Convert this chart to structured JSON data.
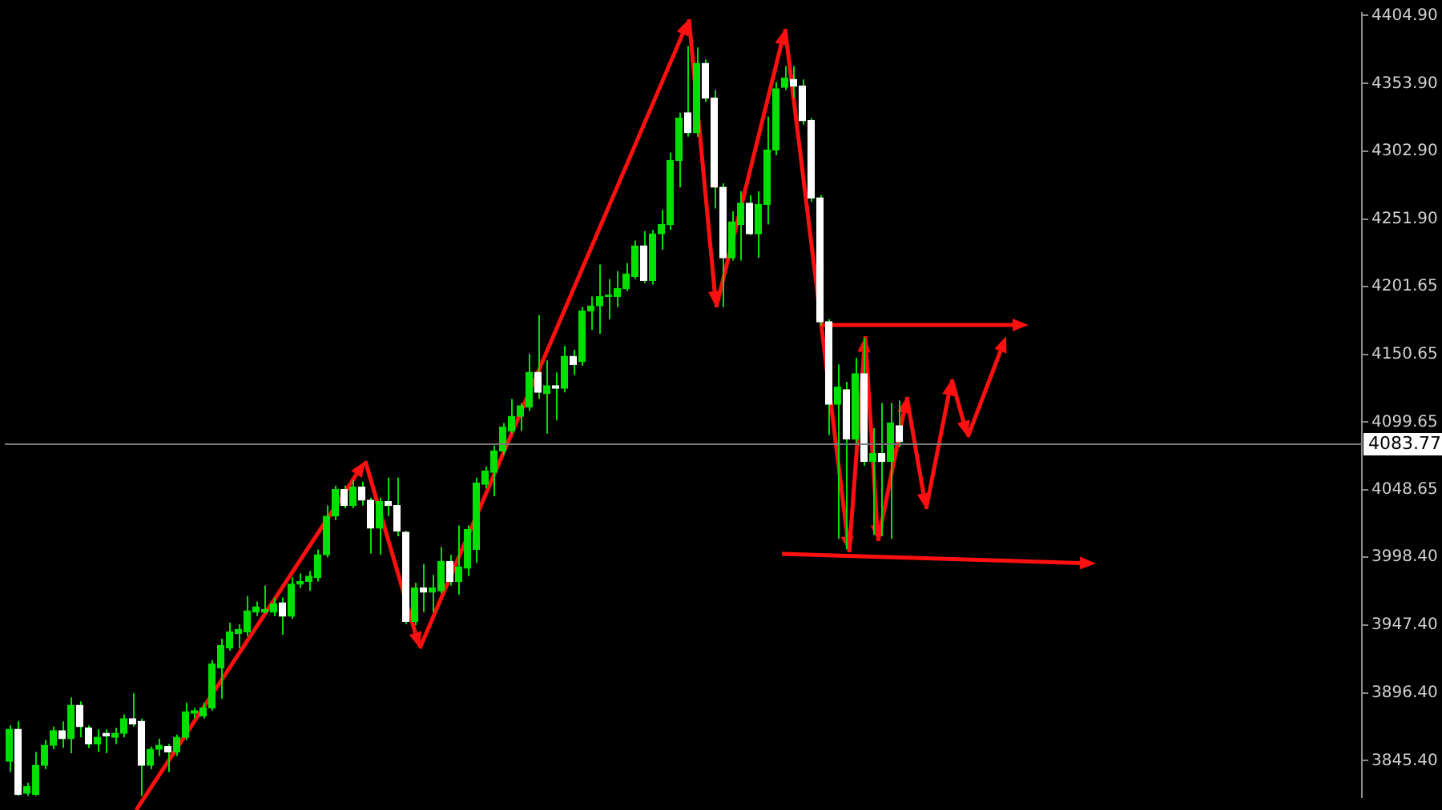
{
  "chart_data": {
    "type": "candlestick",
    "color": "#00e000",
    "categories": [
      null,
      null,
      null,
      null,
      null,
      null,
      null,
      null,
      null,
      null,
      null,
      null,
      null,
      null,
      null,
      null,
      null,
      null,
      null,
      null,
      null,
      null,
      null,
      null,
      null,
      null,
      null,
      null,
      null,
      null,
      null,
      null,
      null,
      null,
      null,
      null,
      null,
      null,
      null,
      null,
      null,
      null,
      null,
      null,
      null,
      null,
      null,
      null,
      null,
      null,
      null,
      null,
      null,
      null,
      null,
      null,
      null,
      null,
      null,
      null,
      null,
      null,
      null,
      null,
      null,
      null,
      null,
      null,
      null,
      null,
      null,
      null,
      null,
      null,
      null,
      null,
      null,
      null,
      null,
      null,
      null,
      null,
      null,
      null,
      null,
      null,
      null,
      null,
      null,
      null,
      null,
      null,
      null,
      null,
      null,
      null,
      null,
      null,
      null,
      null,
      null,
      null,
      null,
      null,
      null,
      null,
      null,
      null,
      null,
      null,
      null,
      null,
      null,
      null,
      null,
      null,
      null,
      null,
      null,
      null,
      null,
      null,
      null,
      null,
      null,
      null,
      null,
      null,
      null,
      null,
      null,
      null,
      null,
      null,
      null,
      null,
      null,
      null,
      null,
      null,
      null,
      null,
      null,
      null,
      null,
      null,
      null,
      null,
      null,
      null,
      null,
      null,
      null,
      null
    ],
    "ohlc": [
      [
        3845,
        3872,
        3837,
        3869
      ],
      [
        3869,
        3875,
        3819,
        3820
      ],
      [
        3821,
        3829,
        3819,
        3826
      ],
      [
        3820,
        3852,
        3819,
        3842
      ],
      [
        3842,
        3861,
        3839,
        3857
      ],
      [
        3857,
        3871,
        3854,
        3868
      ],
      [
        3868,
        3875,
        3855,
        3862
      ],
      [
        3862,
        3893,
        3851,
        3887
      ],
      [
        3887,
        3890,
        3863,
        3871
      ],
      [
        3870,
        3872,
        3855,
        3858
      ],
      [
        3858,
        3869,
        3852,
        3863
      ],
      [
        3866,
        3869,
        3851,
        3864
      ],
      [
        3863,
        3870,
        3858,
        3866
      ],
      [
        3866,
        3880,
        3863,
        3877
      ],
      [
        3877,
        3896,
        3871,
        3873
      ],
      [
        3875,
        3877,
        3819,
        3842
      ],
      [
        3842,
        3856,
        3839,
        3854
      ],
      [
        3854,
        3862,
        3849,
        3857
      ],
      [
        3856,
        3858,
        3837,
        3852
      ],
      [
        3852,
        3865,
        3849,
        3863
      ],
      [
        3863,
        3889,
        3861,
        3882
      ],
      [
        3881,
        3885,
        3877,
        3883
      ],
      [
        3879,
        3889,
        3877,
        3885
      ],
      [
        3885,
        3921,
        3883,
        3918
      ],
      [
        3915,
        3937,
        3892,
        3932
      ],
      [
        3930,
        3949,
        3928,
        3942
      ],
      [
        3941,
        3948,
        3930,
        3944
      ],
      [
        3942,
        3969,
        3939,
        3958
      ],
      [
        3957,
        3965,
        3954,
        3961
      ],
      [
        3957,
        3977,
        3956,
        3959
      ],
      [
        3957,
        3968,
        3954,
        3963
      ],
      [
        3964,
        3968,
        3940,
        3954
      ],
      [
        3954,
        3983,
        3952,
        3978
      ],
      [
        3978,
        3986,
        3975,
        3980
      ],
      [
        3980,
        3988,
        3973,
        3984
      ],
      [
        3983,
        4004,
        3980,
        4000
      ],
      [
        4000,
        4037,
        3998,
        4029
      ],
      [
        4029,
        4052,
        4026,
        4049
      ],
      [
        4049,
        4052,
        4035,
        4037
      ],
      [
        4037,
        4056,
        4035,
        4051
      ],
      [
        4051,
        4055,
        4037,
        4041
      ],
      [
        4041,
        4043,
        4001,
        4020
      ],
      [
        4020,
        4043,
        4000,
        4040
      ],
      [
        4040,
        4058,
        4029,
        4037
      ],
      [
        4037,
        4058,
        4014,
        4018
      ],
      [
        4017,
        4018,
        3948,
        3950
      ],
      [
        3950,
        3979,
        3947,
        3975
      ],
      [
        3975,
        3993,
        3957,
        3972
      ],
      [
        3972,
        3985,
        3957,
        3975
      ],
      [
        3973,
        4006,
        3971,
        3995
      ],
      [
        3995,
        4000,
        3977,
        3980
      ],
      [
        3980,
        4022,
        3970,
        3991
      ],
      [
        3990,
        4022,
        3984,
        4019
      ],
      [
        4004,
        4058,
        3994,
        4054
      ],
      [
        4053,
        4066,
        4050,
        4063
      ],
      [
        4062,
        4082,
        4044,
        4078
      ],
      [
        4078,
        4099,
        4075,
        4096
      ],
      [
        4093,
        4117,
        4091,
        4104
      ],
      [
        4104,
        4114,
        4093,
        4112
      ],
      [
        4111,
        4151,
        4108,
        4137
      ],
      [
        4137,
        4180,
        4117,
        4122
      ],
      [
        4121,
        4146,
        4091,
        4127
      ],
      [
        4127,
        4137,
        4101,
        4125
      ],
      [
        4125,
        4157,
        4122,
        4149
      ],
      [
        4149,
        4154,
        4135,
        4143
      ],
      [
        4145,
        4186,
        4142,
        4183
      ],
      [
        4183,
        4194,
        4169,
        4187
      ],
      [
        4187,
        4218,
        4166,
        4194
      ],
      [
        4194,
        4207,
        4177,
        4195
      ],
      [
        4194,
        4213,
        4186,
        4200
      ],
      [
        4200,
        4219,
        4198,
        4211
      ],
      [
        4209,
        4236,
        4207,
        4232
      ],
      [
        4232,
        4243,
        4204,
        4206
      ],
      [
        4206,
        4244,
        4203,
        4241
      ],
      [
        4241,
        4259,
        4229,
        4248
      ],
      [
        4248,
        4302,
        4244,
        4296
      ],
      [
        4296,
        4332,
        4276,
        4328
      ],
      [
        4332,
        4382,
        4314,
        4317
      ],
      [
        4317,
        4381,
        4314,
        4369
      ],
      [
        4369,
        4372,
        4340,
        4343
      ],
      [
        4343,
        4349,
        4260,
        4276
      ],
      [
        4276,
        4279,
        4186,
        4223
      ],
      [
        4223,
        4258,
        4221,
        4250
      ],
      [
        4248,
        4273,
        4221,
        4264
      ],
      [
        4264,
        4270,
        4240,
        4241
      ],
      [
        4241,
        4273,
        4223,
        4263
      ],
      [
        4263,
        4329,
        4248,
        4304
      ],
      [
        4304,
        4355,
        4300,
        4350
      ],
      [
        4351,
        4367,
        4349,
        4358
      ],
      [
        4357,
        4367,
        4343,
        4352
      ],
      [
        4352,
        4357,
        4323,
        4326
      ],
      [
        4326,
        4328,
        4265,
        4268
      ],
      [
        4268,
        4270,
        4172,
        4175
      ],
      [
        4175,
        4177,
        4090,
        4113
      ],
      [
        4113,
        4143,
        4012,
        4126
      ],
      [
        4124,
        4130,
        4004,
        4087
      ],
      [
        4087,
        4148,
        4084,
        4136
      ],
      [
        4136,
        4163,
        4067,
        4070
      ],
      [
        4070,
        4095,
        4015,
        4076
      ],
      [
        4076,
        4114,
        4014,
        4070
      ],
      [
        4070,
        4114,
        4012,
        4099
      ],
      [
        4097,
        4116,
        4081,
        4085
      ],
      null,
      null,
      null,
      null,
      null,
      null,
      null,
      null,
      null,
      null,
      null,
      null,
      null,
      null,
      null,
      null,
      null,
      null,
      null,
      null,
      null,
      null,
      null,
      null,
      null,
      null,
      null,
      null,
      null,
      null,
      null,
      null,
      null,
      null,
      null,
      null,
      null,
      null,
      null,
      null,
      null,
      null,
      null,
      null,
      null,
      null,
      null,
      null,
      null,
      null,
      null,
      null
    ],
    "colors": [
      "#00e000",
      "#ffffff",
      "#00e000",
      "#00e000",
      "#00e000",
      "#00e000",
      "#ffffff",
      "#00e000",
      "#ffffff",
      "#ffffff",
      "#00e000",
      "#ffffff",
      "#00e000",
      "#00e000",
      "#ffffff",
      "#ffffff",
      "#00e000",
      "#00e000",
      "#ffffff",
      "#00e000",
      "#00e000",
      "#00e000",
      "#00e000",
      "#00e000",
      "#00e000",
      "#00e000",
      "#00e000",
      "#00e000",
      "#00e000",
      "#00e000",
      "#00e000",
      "#ffffff",
      "#00e000",
      "#00e000",
      "#00e000",
      "#00e000",
      "#00e000",
      "#00e000",
      "#ffffff",
      "#00e000",
      "#ffffff",
      "#ffffff",
      "#00e000",
      "#ffffff",
      "#ffffff",
      "#ffffff",
      "#00e000",
      "#ffffff",
      "#00e000",
      "#00e000",
      "#ffffff",
      "#00e000",
      "#00e000",
      "#00e000",
      "#00e000",
      "#00e000",
      "#00e000",
      "#00e000",
      "#00e000",
      "#00e000",
      "#ffffff",
      "#00e000",
      "#ffffff",
      "#00e000",
      "#ffffff",
      "#00e000",
      "#00e000",
      "#00e000",
      "#00e000",
      "#00e000",
      "#00e000",
      "#00e000",
      "#ffffff",
      "#00e000",
      "#00e000",
      "#00e000",
      "#00e000",
      "#ffffff",
      "#00e000",
      "#ffffff",
      "#ffffff",
      "#ffffff",
      "#00e000",
      "#00e000",
      "#ffffff",
      "#00e000",
      "#00e000",
      "#00e000",
      "#00e000",
      "#ffffff",
      "#ffffff",
      "#ffffff",
      "#ffffff",
      "#ffffff",
      "#00e000",
      "#ffffff",
      "#00e000",
      "#ffffff",
      "#00e000",
      "#ffffff",
      "#00e000",
      "#ffffff",
      null,
      null,
      null,
      null,
      null,
      null,
      null,
      null,
      null,
      null,
      null,
      null,
      null,
      null,
      null,
      null,
      null,
      null,
      null,
      null,
      null,
      null,
      null,
      null,
      null,
      null,
      null,
      null,
      null,
      null,
      null,
      null,
      null,
      null,
      null,
      null,
      null,
      null,
      null,
      null,
      null,
      null,
      null,
      null,
      null,
      null,
      null,
      null,
      null,
      null,
      null,
      null
    ],
    "ylim": [
      3818,
      4407
    ],
    "yticks": [
      {
        "value": 4404.9,
        "label": "4404.90"
      },
      {
        "value": 4353.9,
        "label": "4353.90"
      },
      {
        "value": 4302.9,
        "label": "4302.90"
      },
      {
        "value": 4251.9,
        "label": "4251.90"
      },
      {
        "value": 4201.65,
        "label": "4201.65"
      },
      {
        "value": 4150.65,
        "label": "4150.65"
      },
      {
        "value": 4099.65,
        "label": "4099.65"
      },
      {
        "value": 4048.65,
        "label": "4048.65"
      },
      {
        "value": 3998.4,
        "label": "3998.40"
      },
      {
        "value": 3947.4,
        "label": "3947.40"
      },
      {
        "value": 3896.4,
        "label": "3896.40"
      },
      {
        "value": 3845.4,
        "label": "3845.40"
      }
    ],
    "tick_labels": "y",
    "grid": false,
    "legend": false,
    "ref_lines": [
      {
        "axis": "y",
        "value": 4083.77,
        "label": "4083.77",
        "color": "#7a7a7a"
      }
    ]
  }
}
